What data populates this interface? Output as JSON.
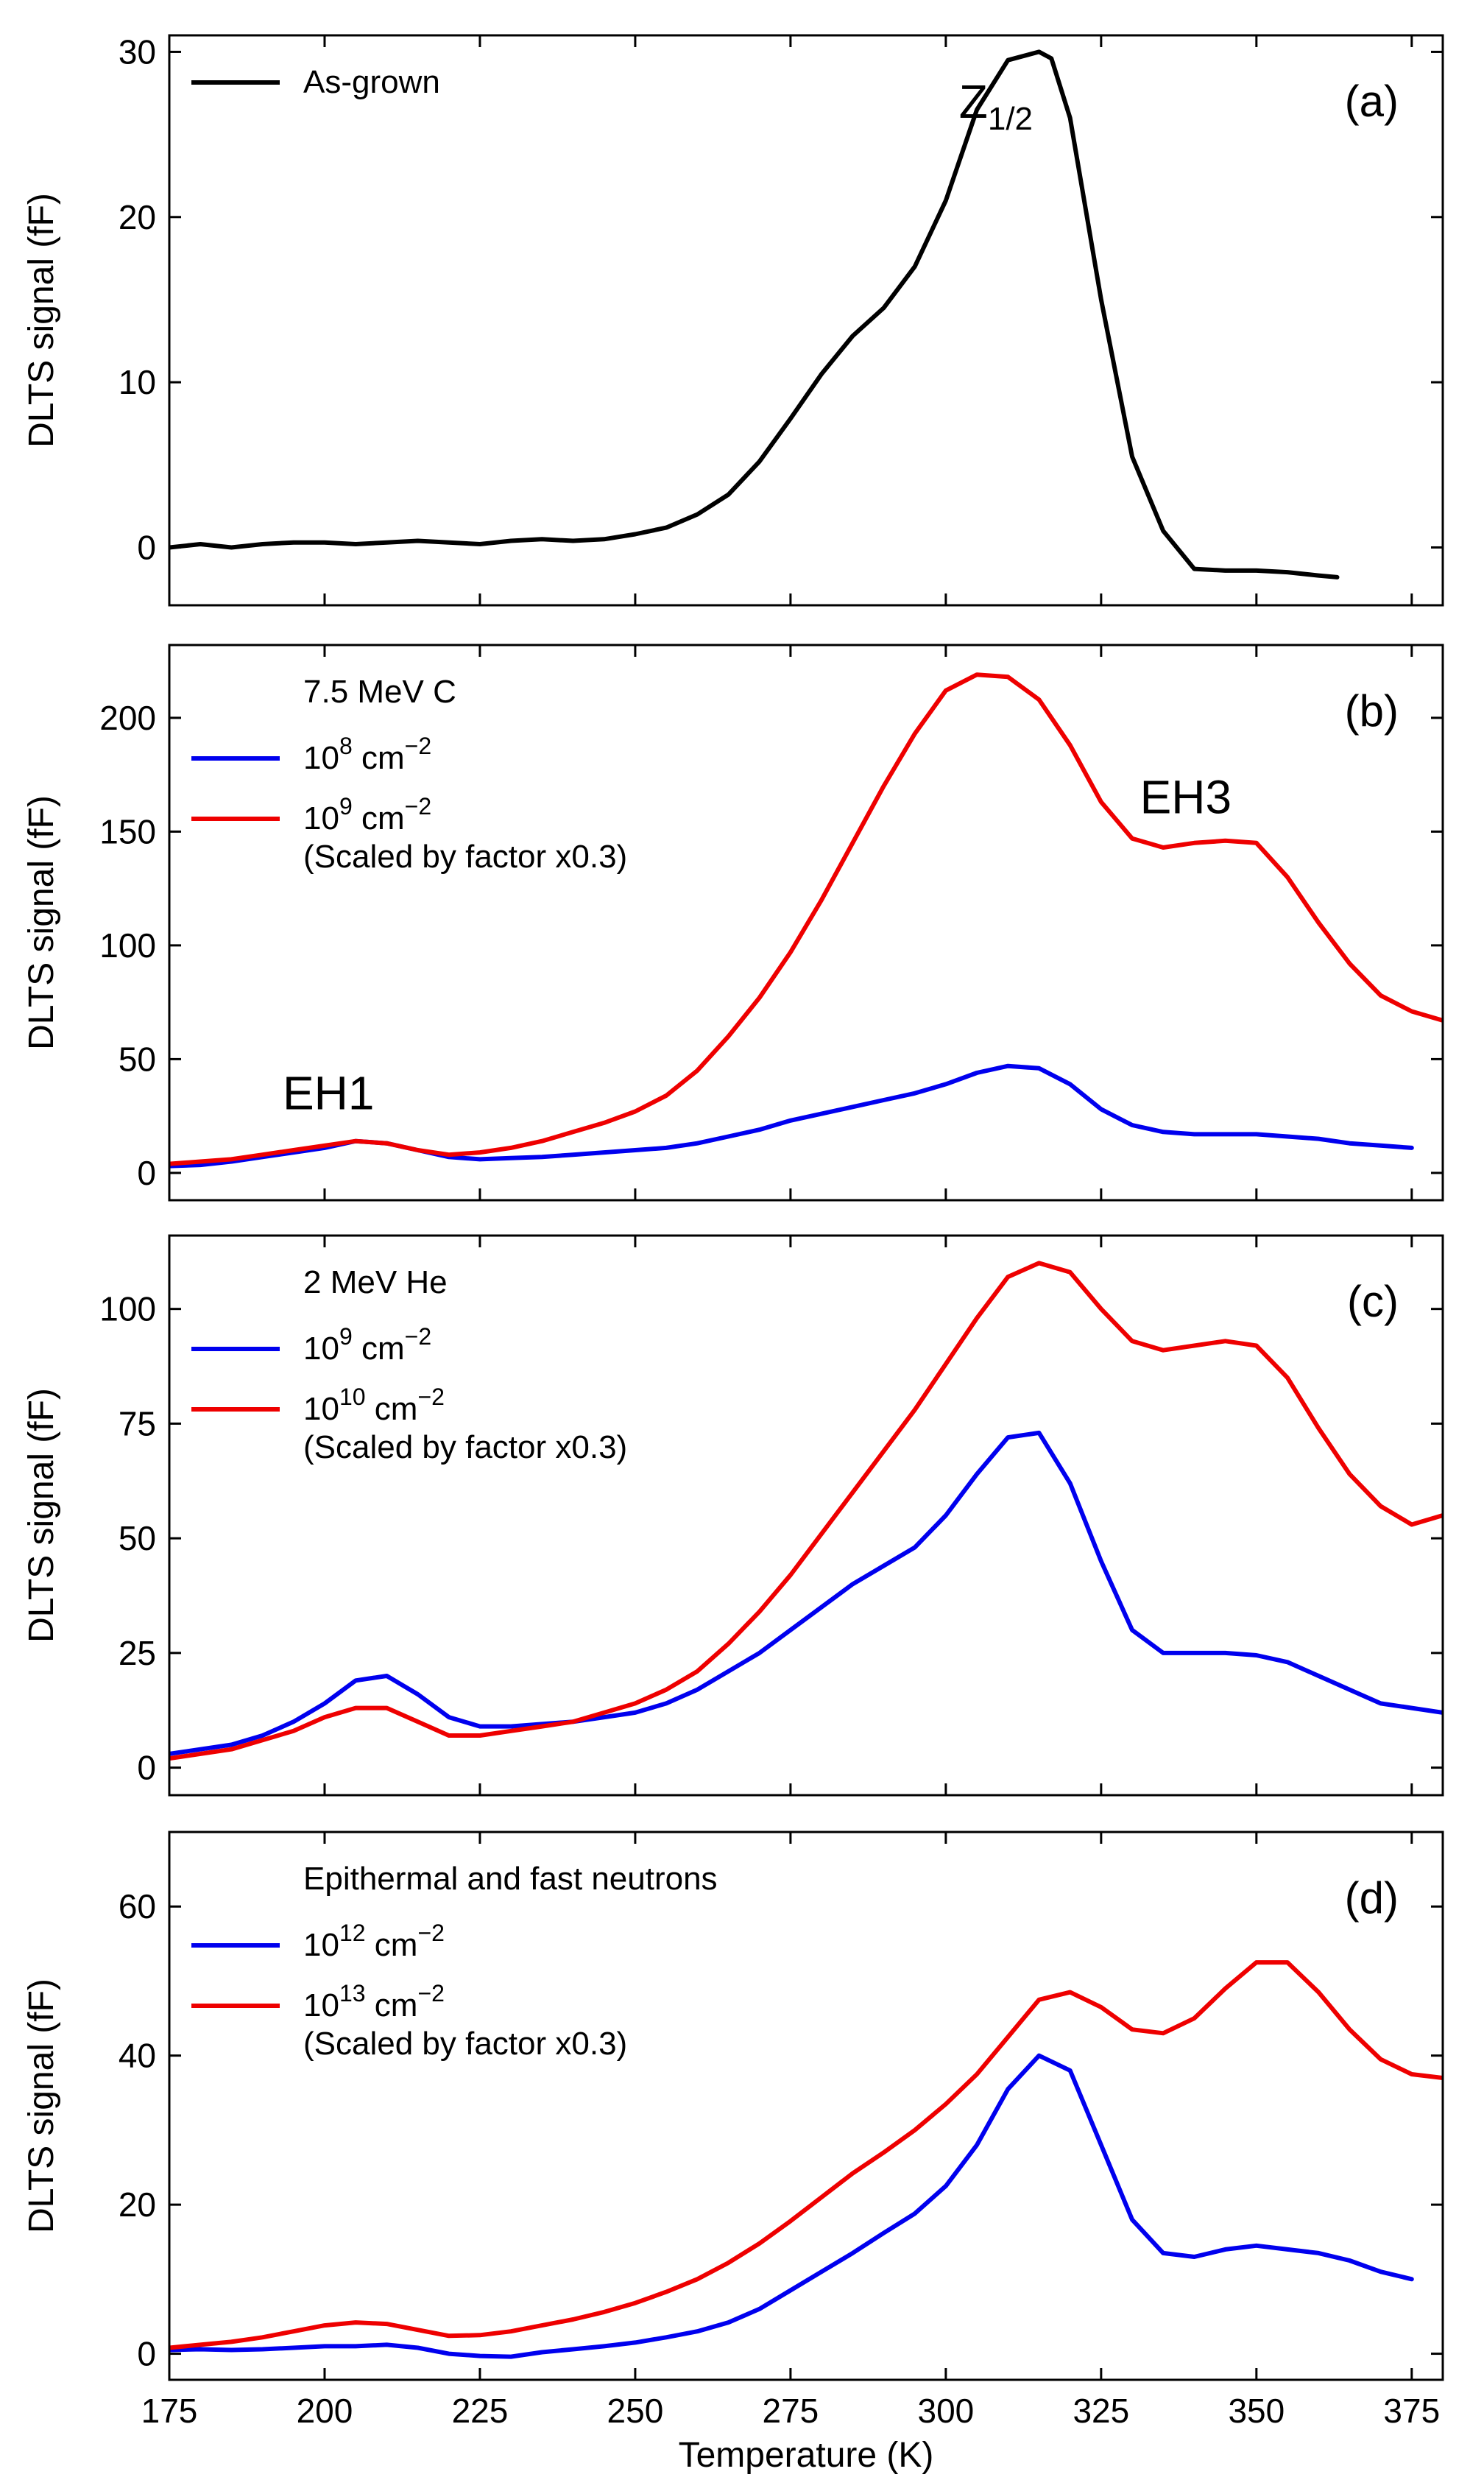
{
  "figure": {
    "xlabel": "Temperature (K)",
    "xlim": [
      175,
      380
    ],
    "xticks": [
      175,
      200,
      225,
      250,
      275,
      300,
      325,
      350,
      375
    ]
  },
  "colors": {
    "black": "#000000",
    "blue": "#0000ee",
    "red": "#ee0000"
  },
  "chart_data": [
    {
      "type": "line",
      "panel": "(a)",
      "ylabel": "DLTS signal (fF)",
      "ylim": [
        -3.5,
        31
      ],
      "yticks": [
        0,
        10,
        20,
        30
      ],
      "legend_title": "",
      "peak_labels": [
        {
          "text": "Z",
          "sub": "1/2",
          "x": 314,
          "y": 26
        }
      ],
      "series": [
        {
          "name": "As-grown",
          "sup": "",
          "unit": "",
          "color_key": "black",
          "note": "",
          "x": [
            175,
            180,
            185,
            190,
            195,
            200,
            205,
            210,
            215,
            220,
            225,
            230,
            235,
            240,
            245,
            250,
            255,
            260,
            265,
            270,
            275,
            280,
            285,
            290,
            295,
            300,
            305,
            310,
            315,
            317,
            320,
            325,
            330,
            335,
            340,
            345,
            350,
            355,
            360,
            363
          ],
          "y": [
            0,
            0.2,
            0,
            0.2,
            0.3,
            0.3,
            0.2,
            0.3,
            0.4,
            0.3,
            0.2,
            0.4,
            0.5,
            0.4,
            0.5,
            0.8,
            1.2,
            2.0,
            3.2,
            5.2,
            7.8,
            10.5,
            12.8,
            14.5,
            17.0,
            21.0,
            26.5,
            29.5,
            30.0,
            29.6,
            26.0,
            15.0,
            5.5,
            1.0,
            -1.3,
            -1.4,
            -1.4,
            -1.5,
            -1.7,
            -1.8
          ]
        }
      ]
    },
    {
      "type": "line",
      "panel": "(b)",
      "ylabel": "DLTS signal (fF)",
      "ylim": [
        -12,
        232
      ],
      "yticks": [
        0,
        50,
        100,
        150,
        200
      ],
      "legend_title": "7.5 MeV C",
      "peak_labels": [
        {
          "text": "EH1",
          "sub": "",
          "x": 208,
          "y": 28
        },
        {
          "text": "EH3",
          "sub": "",
          "x": 346,
          "y": 158
        }
      ],
      "series": [
        {
          "name": "10",
          "sup": "8",
          "unit": " cm",
          "color_key": "blue",
          "note": "",
          "x": [
            175,
            180,
            185,
            190,
            195,
            200,
            205,
            210,
            215,
            220,
            225,
            230,
            235,
            240,
            245,
            250,
            255,
            260,
            265,
            270,
            275,
            280,
            285,
            290,
            295,
            300,
            305,
            310,
            315,
            320,
            325,
            330,
            335,
            340,
            345,
            350,
            355,
            360,
            365,
            370,
            375
          ],
          "y": [
            3,
            3.5,
            5,
            7,
            9,
            11,
            14,
            13,
            10,
            7,
            6,
            6.5,
            7,
            8,
            9,
            10,
            11,
            13,
            16,
            19,
            23,
            26,
            29,
            32,
            35,
            39,
            44,
            47,
            46,
            39,
            28,
            21,
            18,
            17,
            17,
            17,
            16,
            15,
            13,
            12,
            11
          ]
        },
        {
          "name": "10",
          "sup": "9",
          "unit": " cm",
          "color_key": "red",
          "note": "(Scaled by factor x0.3)",
          "x": [
            175,
            180,
            185,
            190,
            195,
            200,
            205,
            210,
            215,
            220,
            225,
            230,
            235,
            240,
            245,
            250,
            255,
            260,
            265,
            270,
            275,
            280,
            285,
            290,
            295,
            300,
            305,
            310,
            315,
            320,
            325,
            330,
            335,
            340,
            345,
            350,
            355,
            360,
            365,
            370,
            375,
            380
          ],
          "y": [
            4,
            5,
            6,
            8,
            10,
            12,
            14,
            13,
            10,
            8,
            9,
            11,
            14,
            18,
            22,
            27,
            34,
            45,
            60,
            77,
            97,
            120,
            145,
            170,
            193,
            212,
            219,
            218,
            208,
            188,
            163,
            147,
            143,
            145,
            146,
            145,
            130,
            110,
            92,
            78,
            71,
            67
          ]
        }
      ]
    },
    {
      "type": "line",
      "panel": "(c)",
      "ylabel": "DLTS signal (fF)",
      "ylim": [
        -6,
        116
      ],
      "yticks": [
        0,
        25,
        50,
        75,
        100
      ],
      "legend_title": "2 MeV He",
      "peak_labels": [],
      "series": [
        {
          "name": "10",
          "sup": "9",
          "unit": " cm",
          "color_key": "blue",
          "note": "",
          "x": [
            175,
            180,
            185,
            190,
            195,
            200,
            205,
            210,
            215,
            220,
            225,
            230,
            235,
            240,
            245,
            250,
            255,
            260,
            265,
            270,
            275,
            280,
            285,
            290,
            295,
            300,
            305,
            310,
            315,
            320,
            325,
            330,
            335,
            340,
            345,
            350,
            355,
            360,
            365,
            370,
            375,
            380
          ],
          "y": [
            3,
            4,
            5,
            7,
            10,
            14,
            19,
            20,
            16,
            11,
            9,
            9,
            9.5,
            10,
            11,
            12,
            14,
            17,
            21,
            25,
            30,
            35,
            40,
            44,
            48,
            55,
            64,
            72,
            73,
            62,
            45,
            30,
            25,
            25,
            25,
            24.5,
            23,
            20,
            17,
            14,
            13,
            12
          ]
        },
        {
          "name": "10",
          "sup": "10",
          "unit": " cm",
          "color_key": "red",
          "note": "(Scaled by factor x0.3)",
          "x": [
            175,
            180,
            185,
            190,
            195,
            200,
            205,
            210,
            215,
            220,
            225,
            230,
            235,
            240,
            245,
            250,
            255,
            260,
            265,
            270,
            275,
            280,
            285,
            290,
            295,
            300,
            305,
            310,
            315,
            320,
            325,
            330,
            335,
            340,
            345,
            350,
            355,
            360,
            365,
            370,
            375,
            380
          ],
          "y": [
            2,
            3,
            4,
            6,
            8,
            11,
            13,
            13,
            10,
            7,
            7,
            8,
            9,
            10,
            12,
            14,
            17,
            21,
            27,
            34,
            42,
            51,
            60,
            69,
            78,
            88,
            98,
            107,
            110,
            108,
            100,
            93,
            91,
            92,
            93,
            92,
            85,
            74,
            64,
            57,
            53,
            55
          ]
        }
      ]
    },
    {
      "type": "line",
      "panel": "(d)",
      "ylabel": "DLTS signal (fF)",
      "ylim": [
        -3.5,
        70
      ],
      "yticks": [
        0,
        20,
        40,
        60
      ],
      "legend_title": "Epithermal and fast neutrons",
      "peak_labels": [],
      "series": [
        {
          "name": "10",
          "sup": "12",
          "unit": " cm",
          "color_key": "blue",
          "note": "",
          "x": [
            175,
            180,
            185,
            190,
            195,
            200,
            205,
            210,
            215,
            220,
            225,
            230,
            235,
            240,
            245,
            250,
            255,
            260,
            265,
            270,
            275,
            280,
            285,
            290,
            295,
            300,
            305,
            310,
            315,
            320,
            325,
            330,
            335,
            340,
            345,
            350,
            355,
            360,
            365,
            370,
            375
          ],
          "y": [
            0.5,
            0.6,
            0.5,
            0.6,
            0.8,
            1.0,
            1.0,
            1.2,
            0.8,
            0,
            -0.3,
            -0.4,
            0.2,
            0.6,
            1.0,
            1.5,
            2.2,
            3.0,
            4.2,
            6.0,
            8.5,
            11.0,
            13.5,
            16.2,
            18.8,
            22.5,
            28.0,
            35.5,
            40.0,
            38.0,
            28.0,
            18.0,
            13.5,
            13.0,
            14.0,
            14.5,
            14.0,
            13.5,
            12.5,
            11.0,
            10.0
          ]
        },
        {
          "name": "10",
          "sup": "13",
          "unit": " cm",
          "color_key": "red",
          "note": "(Scaled by factor x0.3)",
          "x": [
            175,
            180,
            185,
            190,
            195,
            200,
            205,
            210,
            215,
            220,
            225,
            230,
            235,
            240,
            245,
            250,
            255,
            260,
            265,
            270,
            275,
            280,
            285,
            290,
            295,
            300,
            305,
            310,
            315,
            320,
            325,
            330,
            335,
            340,
            345,
            350,
            355,
            360,
            365,
            370,
            375,
            380
          ],
          "y": [
            0.8,
            1.2,
            1.6,
            2.2,
            3.0,
            3.8,
            4.2,
            4.0,
            3.2,
            2.4,
            2.5,
            3.0,
            3.8,
            4.6,
            5.6,
            6.8,
            8.3,
            10.0,
            12.2,
            14.8,
            17.8,
            21.0,
            24.2,
            27.0,
            30.0,
            33.5,
            37.5,
            42.5,
            47.5,
            48.5,
            46.5,
            43.5,
            43.0,
            45.0,
            49.0,
            52.5,
            52.5,
            48.5,
            43.5,
            39.5,
            37.5,
            37.0
          ]
        }
      ]
    }
  ]
}
